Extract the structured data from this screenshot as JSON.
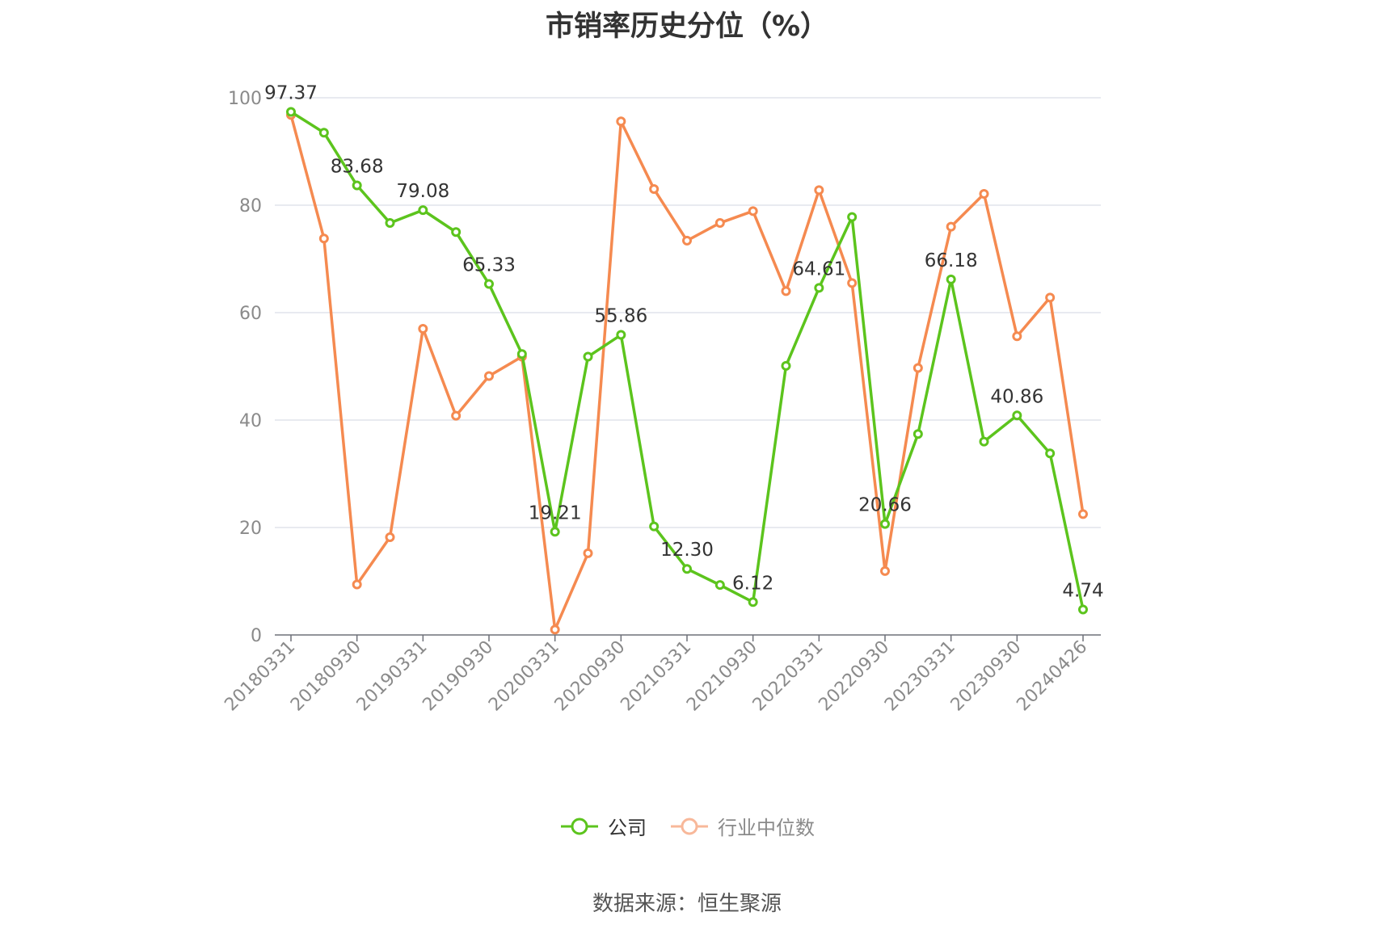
{
  "title": "市销率历史分位（%）",
  "source": "数据来源：恒生聚源",
  "legend": {
    "company": "公司",
    "industry": "行业中位数"
  },
  "colors": {
    "company": "#5cc41d",
    "industry": "#f58a50",
    "grid": "#e0e3ec",
    "axis": "#6e7079"
  },
  "chart_data": {
    "type": "line",
    "ylim": [
      0,
      100
    ],
    "yticks": [
      0,
      20,
      40,
      60,
      80,
      100
    ],
    "x_tick_labels": [
      "20180331",
      "20180930",
      "20190331",
      "20190930",
      "20200331",
      "20200930",
      "20210331",
      "20210930",
      "20220331",
      "20220930",
      "20230331",
      "20230930",
      "20240426"
    ],
    "x": [
      "20180331",
      "20180630",
      "20180930",
      "20181231",
      "20190331",
      "20190630",
      "20190930",
      "20191231",
      "20200331",
      "20200630",
      "20200930",
      "20201231",
      "20210331",
      "20210630",
      "20210930",
      "20211231",
      "20220331",
      "20220630",
      "20220930",
      "20221231",
      "20230331",
      "20230630",
      "20230930",
      "20231231",
      "20240426"
    ],
    "series": [
      {
        "name": "公司",
        "values": [
          97.37,
          93.5,
          83.68,
          76.7,
          79.08,
          75.0,
          65.33,
          52.3,
          19.21,
          51.8,
          55.86,
          20.2,
          12.3,
          9.3,
          6.12,
          50.1,
          64.61,
          77.8,
          20.66,
          37.4,
          66.18,
          36.0,
          40.86,
          33.8,
          4.74
        ],
        "labels": [
          "97.37",
          "",
          "83.68",
          "",
          "79.08",
          "",
          "65.33",
          "",
          "19.21",
          "",
          "55.86",
          "",
          "12.30",
          "",
          "6.12",
          "",
          "64.61",
          "",
          "20.66",
          "",
          "66.18",
          "",
          "40.86",
          "",
          "4.74"
        ]
      },
      {
        "name": "行业中位数",
        "values": [
          96.8,
          73.8,
          9.4,
          18.2,
          57.0,
          40.8,
          48.2,
          51.8,
          1.0,
          15.2,
          95.6,
          83.0,
          73.4,
          76.7,
          78.9,
          64.0,
          82.8,
          65.5,
          11.9,
          49.7,
          76.0,
          82.1,
          55.6,
          62.8,
          22.5
        ]
      }
    ]
  }
}
